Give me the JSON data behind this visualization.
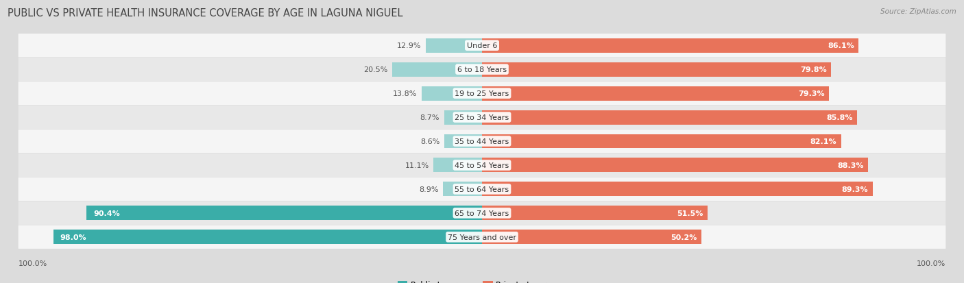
{
  "title": "PUBLIC VS PRIVATE HEALTH INSURANCE COVERAGE BY AGE IN LAGUNA NIGUEL",
  "source": "Source: ZipAtlas.com",
  "categories": [
    "Under 6",
    "6 to 18 Years",
    "19 to 25 Years",
    "25 to 34 Years",
    "35 to 44 Years",
    "45 to 54 Years",
    "55 to 64 Years",
    "65 to 74 Years",
    "75 Years and over"
  ],
  "public_values": [
    12.9,
    20.5,
    13.8,
    8.7,
    8.6,
    11.1,
    8.9,
    90.4,
    98.0
  ],
  "private_values": [
    86.1,
    79.8,
    79.3,
    85.8,
    82.1,
    88.3,
    89.3,
    51.5,
    50.2
  ],
  "public_color_high": "#3aada8",
  "public_color_low": "#9dd4d2",
  "private_color_high": "#e8735a",
  "private_color_low": "#f2b5a8",
  "bg_color": "#dcdcdc",
  "row_bg_light": "#f5f5f5",
  "row_bg_dark": "#e8e8e8",
  "label_color_dark": "#555555",
  "label_color_white": "#ffffff",
  "max_value": 100.0,
  "title_fontsize": 10.5,
  "bar_label_fontsize": 8,
  "cat_label_fontsize": 8,
  "legend_fontsize": 8.5,
  "source_fontsize": 7.5
}
